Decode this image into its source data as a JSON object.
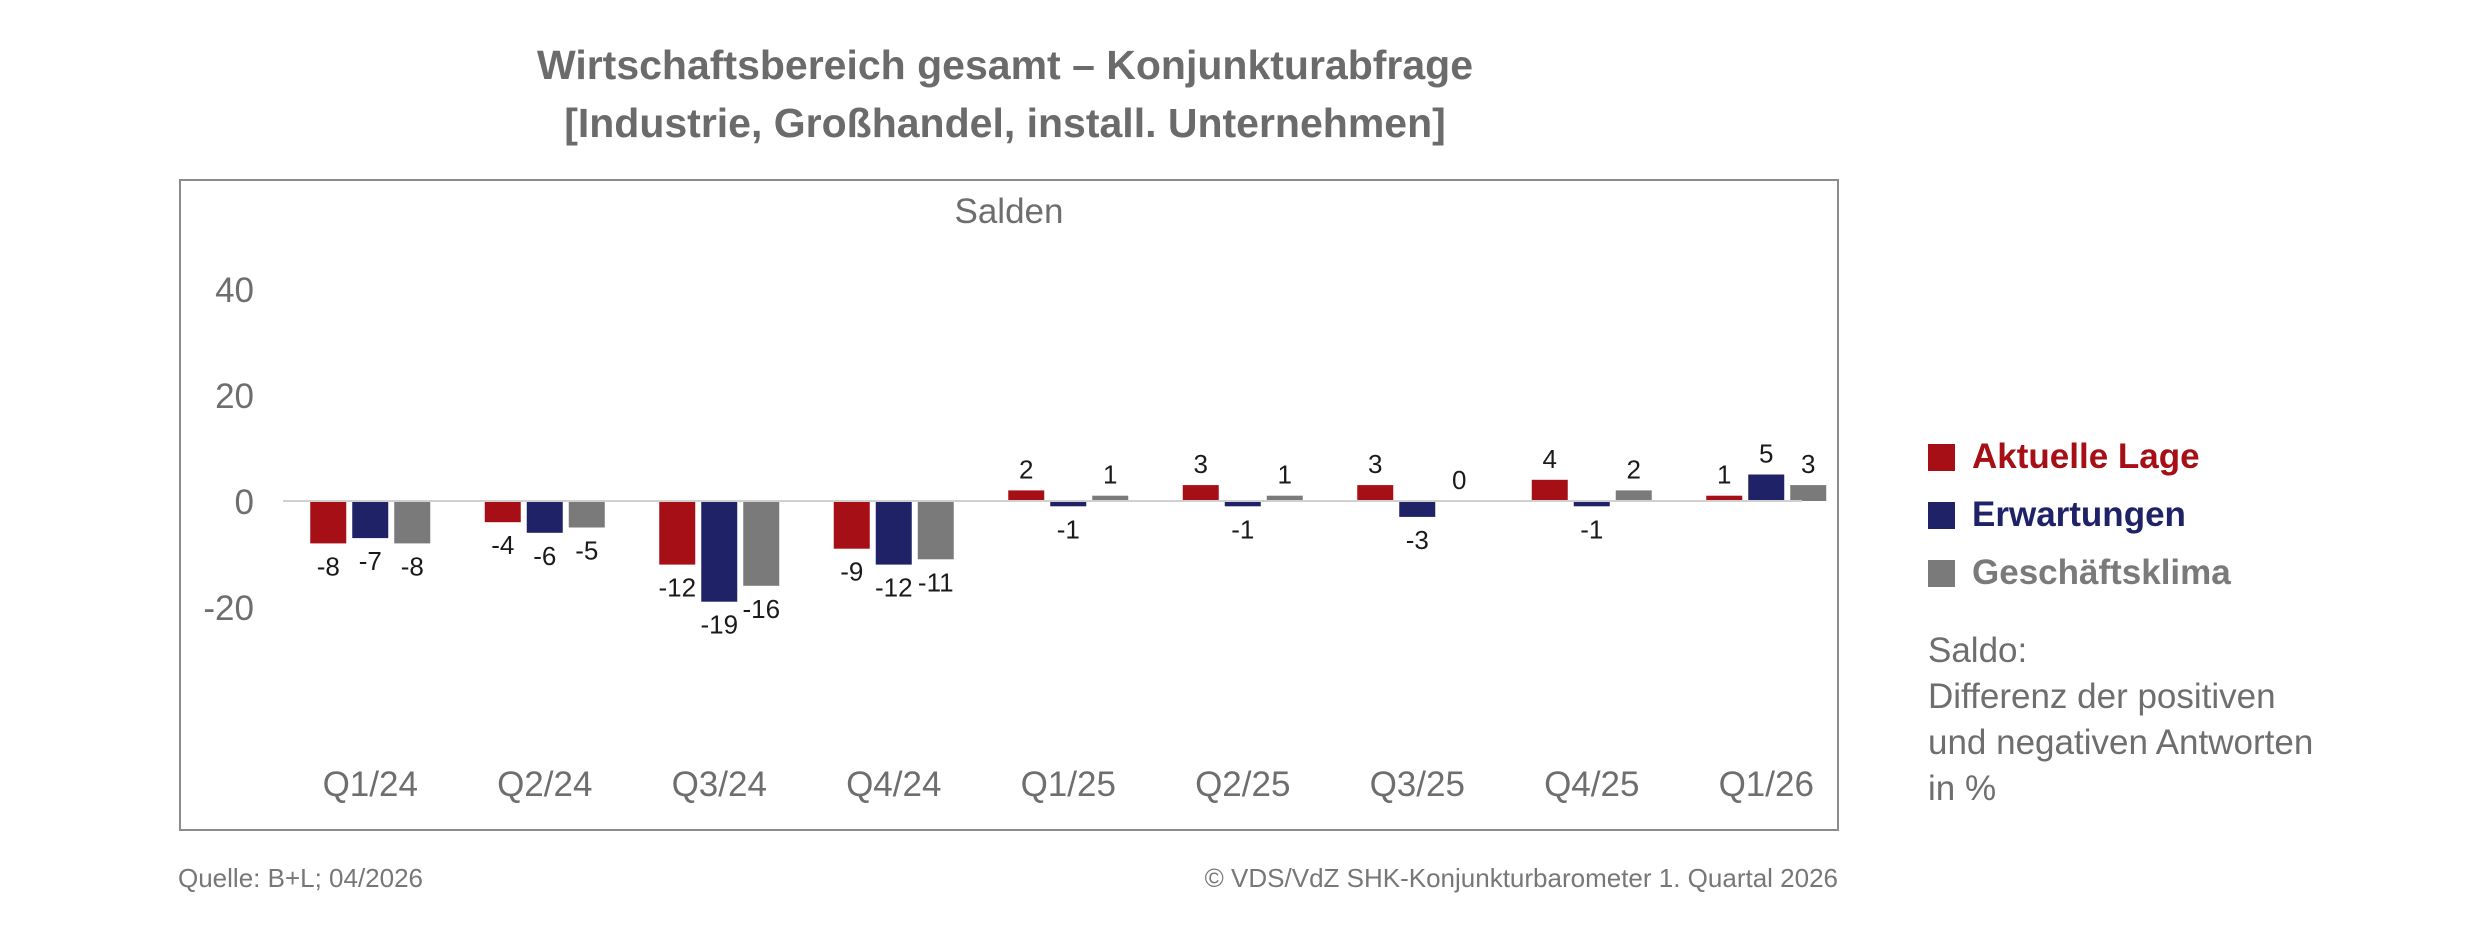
{
  "chart_data": {
    "type": "bar",
    "title": "Wirtschaftsbereich gesamt – Konjunkturabfrage",
    "subtitle": "[Industrie, Großhandel, install. Unternehmen]",
    "plot_label": "Salden",
    "categories": [
      "Q1/24",
      "Q2/24",
      "Q3/24",
      "Q4/24",
      "Q1/25",
      "Q2/25",
      "Q3/25",
      "Q4/25",
      "Q1/26"
    ],
    "series": [
      {
        "name": "Aktuelle Lage",
        "color": "#a50f15",
        "values": [
          -8,
          -4,
          -12,
          -9,
          2,
          3,
          3,
          4,
          1
        ]
      },
      {
        "name": "Erwartungen",
        "color": "#1f2266",
        "values": [
          -7,
          -6,
          -19,
          -12,
          -1,
          -1,
          -3,
          -1,
          5
        ]
      },
      {
        "name": "Geschäftsklima",
        "color": "#7a7a7a",
        "values": [
          -8,
          -5,
          -16,
          -11,
          1,
          1,
          0,
          2,
          3
        ]
      }
    ],
    "yticks": [
      40,
      20,
      0,
      -20
    ],
    "ylim": [
      -50,
      40
    ],
    "grid": false,
    "legend_position": "right"
  },
  "note": {
    "heading": "Saldo:",
    "lines": [
      "Differenz der positiven",
      "und negativen Antworten",
      "in %"
    ]
  },
  "footer": {
    "source": "Quelle: B+L; 04/2026",
    "copyright": "© VDS/VdZ SHK-Konjunkturbarometer 1. Quartal 2026"
  }
}
